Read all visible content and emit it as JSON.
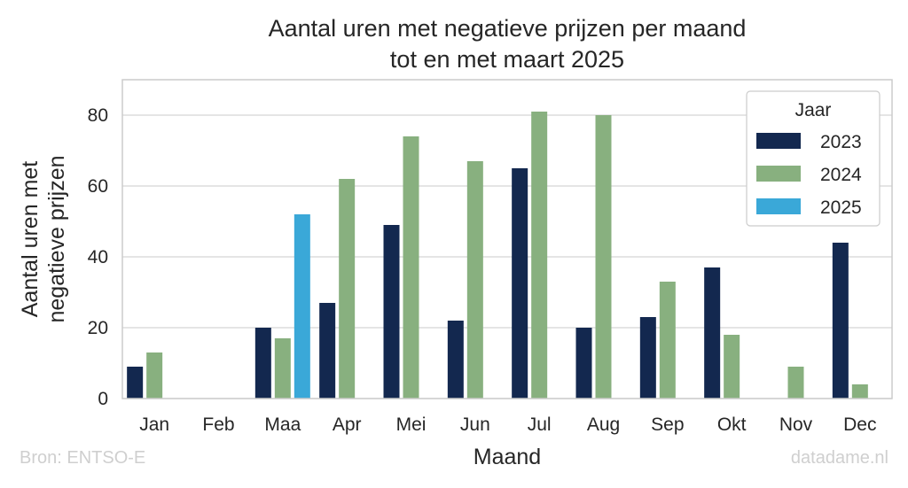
{
  "chart_data": {
    "type": "bar",
    "title_lines": [
      "Aantal uren met negatieve prijzen per maand",
      "tot en met maart 2025"
    ],
    "xlabel": "Maand",
    "ylabel_lines": [
      "Aantal uren met",
      "negatieve prijzen"
    ],
    "categories": [
      "Jan",
      "Feb",
      "Maa",
      "Apr",
      "Mei",
      "Jun",
      "Jul",
      "Aug",
      "Sep",
      "Okt",
      "Nov",
      "Dec"
    ],
    "ylim": [
      0,
      90
    ],
    "yticks": [
      0,
      20,
      40,
      60,
      80
    ],
    "grid": true,
    "legend": {
      "title": "Jaar",
      "placement": "top-right"
    },
    "series": [
      {
        "name": "2023",
        "color": "#13284f",
        "values": [
          9,
          null,
          20,
          27,
          49,
          22,
          65,
          20,
          23,
          37,
          null,
          44
        ]
      },
      {
        "name": "2024",
        "color": "#88b07f",
        "values": [
          13,
          null,
          17,
          62,
          74,
          67,
          81,
          80,
          33,
          18,
          9,
          4
        ]
      },
      {
        "name": "2025",
        "color": "#3aa8d8",
        "values": [
          null,
          null,
          52,
          null,
          null,
          null,
          null,
          null,
          null,
          null,
          null,
          null
        ]
      }
    ]
  },
  "footer": {
    "source": "Bron: ENTSO-E",
    "credit": "datadame.nl"
  }
}
